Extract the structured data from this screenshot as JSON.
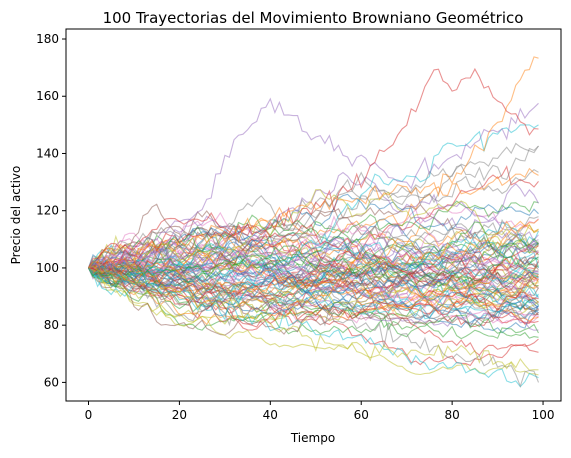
{
  "chart_data": {
    "type": "line",
    "title": "100 Trayectorias del Movimiento Browniano Geométrico",
    "xlabel": "Tiempo",
    "ylabel": "Precio del activo",
    "xlim": [
      -4.95,
      103.95
    ],
    "ylim": [
      53.5,
      183.5
    ],
    "xticks": [
      0,
      20,
      40,
      60,
      80,
      100
    ],
    "yticks": [
      60,
      80,
      100,
      120,
      140,
      160,
      180
    ],
    "grid": false,
    "legend": "none",
    "n_paths": 100,
    "n_steps": 100,
    "start_value": 100,
    "line_alpha": 0.5,
    "palette": [
      "#1f77b4",
      "#ff7f0e",
      "#2ca02c",
      "#d62728",
      "#9467bd",
      "#8c564b",
      "#e377c2",
      "#7f7f7f",
      "#bcbd22",
      "#17becf"
    ],
    "highlighted_paths": [
      {
        "color": "#9467bd",
        "x": [
          0,
          10,
          20,
          25,
          30,
          35,
          40,
          45,
          50,
          60,
          70,
          80,
          90,
          99
        ],
        "y": [
          100,
          104,
          112,
          120,
          138,
          150,
          158,
          152,
          145,
          138,
          130,
          140,
          148,
          155
        ]
      },
      {
        "color": "#d62728",
        "x": [
          0,
          10,
          20,
          30,
          40,
          50,
          60,
          70,
          76,
          80,
          85,
          90,
          95,
          99
        ],
        "y": [
          100,
          104,
          110,
          112,
          115,
          122,
          130,
          150,
          170,
          162,
          168,
          158,
          150,
          148
        ]
      },
      {
        "color": "#ff7f0e",
        "x": [
          0,
          10,
          20,
          30,
          40,
          50,
          60,
          70,
          80,
          85,
          90,
          95,
          99
        ],
        "y": [
          100,
          103,
          108,
          112,
          118,
          122,
          125,
          128,
          130,
          140,
          150,
          165,
          177
        ]
      },
      {
        "color": "#17becf",
        "x": [
          0,
          10,
          20,
          30,
          40,
          50,
          60,
          70,
          80,
          85,
          90,
          95,
          99
        ],
        "y": [
          100,
          97,
          90,
          85,
          82,
          80,
          75,
          70,
          65,
          63,
          64,
          60,
          62
        ]
      },
      {
        "color": "#7f7f7f",
        "x": [
          0,
          10,
          20,
          30,
          40,
          50,
          60,
          70,
          80,
          90,
          95,
          99
        ],
        "y": [
          100,
          95,
          88,
          85,
          88,
          84,
          80,
          75,
          70,
          66,
          62,
          61
        ]
      },
      {
        "color": "#bcbd22",
        "x": [
          0,
          10,
          20,
          30,
          40,
          50,
          60,
          70,
          80,
          90,
          99
        ],
        "y": [
          100,
          96,
          92,
          88,
          80,
          75,
          72,
          70,
          72,
          68,
          64
        ]
      }
    ]
  }
}
